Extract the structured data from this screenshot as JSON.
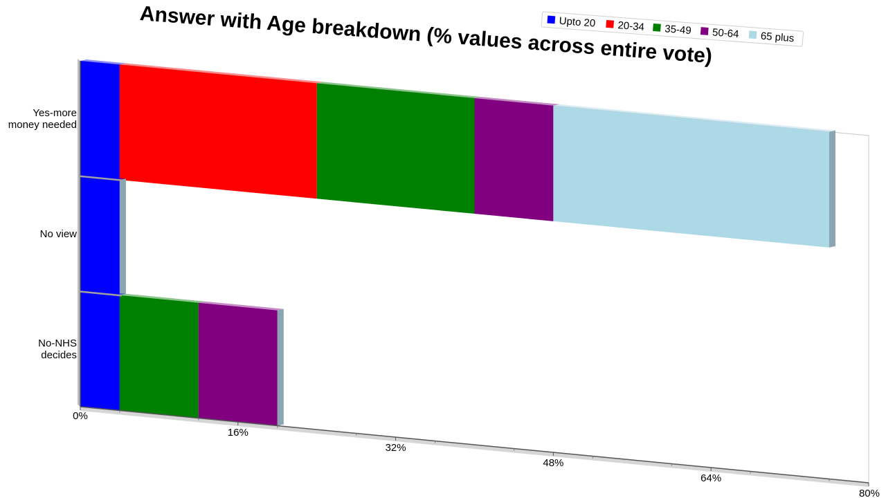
{
  "chart_data": {
    "type": "bar",
    "orientation": "horizontal",
    "stacked": true,
    "title": "Answer with Age breakdown (% values across entire vote)",
    "categories": [
      "Yes-more money needed",
      "No view",
      "No-NHS decides"
    ],
    "category_lines": [
      [
        "Yes-more",
        "money needed"
      ],
      [
        "No view"
      ],
      [
        "No-NHS",
        "decides"
      ]
    ],
    "series": [
      {
        "name": "Upto 20",
        "color": "#0000ff",
        "values": [
          4,
          4,
          4
        ]
      },
      {
        "name": "20-34",
        "color": "#ff0000",
        "values": [
          20,
          0,
          0
        ]
      },
      {
        "name": "35-49",
        "color": "#008000",
        "values": [
          16,
          0,
          8
        ]
      },
      {
        "name": "50-64",
        "color": "#800080",
        "values": [
          8,
          0,
          8
        ]
      },
      {
        "name": "65 plus",
        "color": "#add8e6",
        "values": [
          28,
          0,
          0
        ]
      }
    ],
    "xlim": [
      0,
      80
    ],
    "x_ticks": [
      "0%",
      "16%",
      "32%",
      "48%",
      "64%",
      "80%"
    ],
    "legend_position": "top-right",
    "grid": false
  }
}
